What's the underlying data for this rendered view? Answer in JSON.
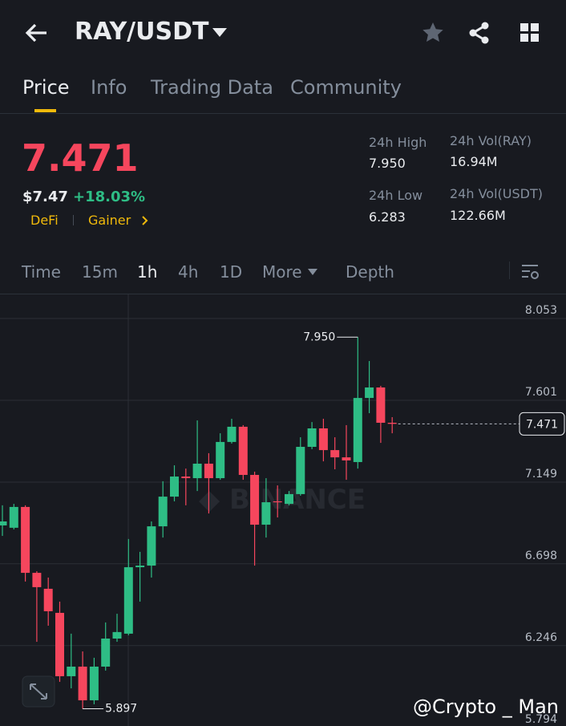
{
  "header": {
    "pair": "RAY/USDT"
  },
  "tabs": [
    "Price",
    "Info",
    "Trading Data",
    "Community"
  ],
  "price": {
    "last": "7.471",
    "usd": "$7.47",
    "change": "+18.03%",
    "tags": [
      "DeFi",
      "Gainer"
    ]
  },
  "stats": [
    {
      "label": "24h High",
      "value": "7.950"
    },
    {
      "label": "24h Vol(RAY)",
      "value": "16.94M"
    },
    {
      "label": "24h Low",
      "value": "6.283"
    },
    {
      "label": "24h Vol(USDT)",
      "value": "122.66M"
    }
  ],
  "intervals": [
    "Time",
    "15m",
    "1h",
    "4h",
    "1D",
    "More",
    "Depth"
  ],
  "watermark": "@Crypto _ Man",
  "chart_data": {
    "type": "candlestick",
    "open": [
      6.91,
      6.897,
      7.012,
      6.648,
      6.56,
      6.427,
      6.077,
      6.13,
      5.944,
      6.13,
      6.285,
      6.312,
      6.679,
      6.688,
      6.905,
      7.069,
      7.18,
      7.171,
      7.251,
      7.171,
      7.371,
      7.455,
      7.189,
      6.914,
      7.043,
      7.029,
      7.083,
      7.344,
      7.446,
      7.326,
      7.286,
      7.26,
      7.614,
      7.672,
      7.477
    ],
    "high": [
      7.021,
      7.029,
      7.021,
      6.657,
      6.622,
      6.489,
      6.312,
      6.214,
      6.179,
      6.374,
      6.422,
      6.835,
      6.764,
      6.932,
      7.154,
      7.242,
      7.224,
      7.49,
      7.309,
      7.419,
      7.499,
      7.464,
      7.207,
      7.171,
      7.131,
      7.1,
      7.397,
      7.481,
      7.499,
      7.397,
      7.464,
      7.95,
      7.818,
      7.681,
      7.508
    ],
    "low": [
      6.852,
      6.888,
      6.6,
      6.267,
      6.356,
      6.046,
      6.01,
      5.897,
      5.922,
      6.108,
      6.267,
      6.303,
      6.489,
      6.622,
      6.843,
      7.043,
      7.021,
      7.1,
      6.976,
      7.162,
      7.362,
      7.162,
      6.688,
      6.843,
      6.954,
      7.021,
      7.074,
      7.331,
      7.264,
      7.22,
      7.162,
      7.224,
      7.53,
      7.366,
      7.419
    ],
    "close": [
      6.932,
      7.012,
      6.648,
      6.569,
      6.436,
      6.077,
      6.13,
      5.944,
      6.13,
      6.285,
      6.321,
      6.679,
      6.688,
      6.905,
      7.069,
      7.18,
      7.171,
      7.251,
      7.171,
      7.371,
      7.455,
      7.189,
      6.914,
      7.038,
      7.038,
      7.083,
      7.344,
      7.446,
      7.326,
      7.286,
      7.269,
      7.614,
      7.672,
      7.477,
      7.471
    ],
    "up_color": "#2ebd85",
    "down_color": "#f6465d",
    "ylim": [
      5.802,
      8.186
    ],
    "yticks": [
      8.053,
      7.601,
      7.149,
      6.698,
      6.246,
      5.794
    ],
    "grid": true,
    "high_marker": {
      "value": 7.95,
      "label": "7.950"
    },
    "low_marker": 5.897,
    "last_price": 7.471
  }
}
